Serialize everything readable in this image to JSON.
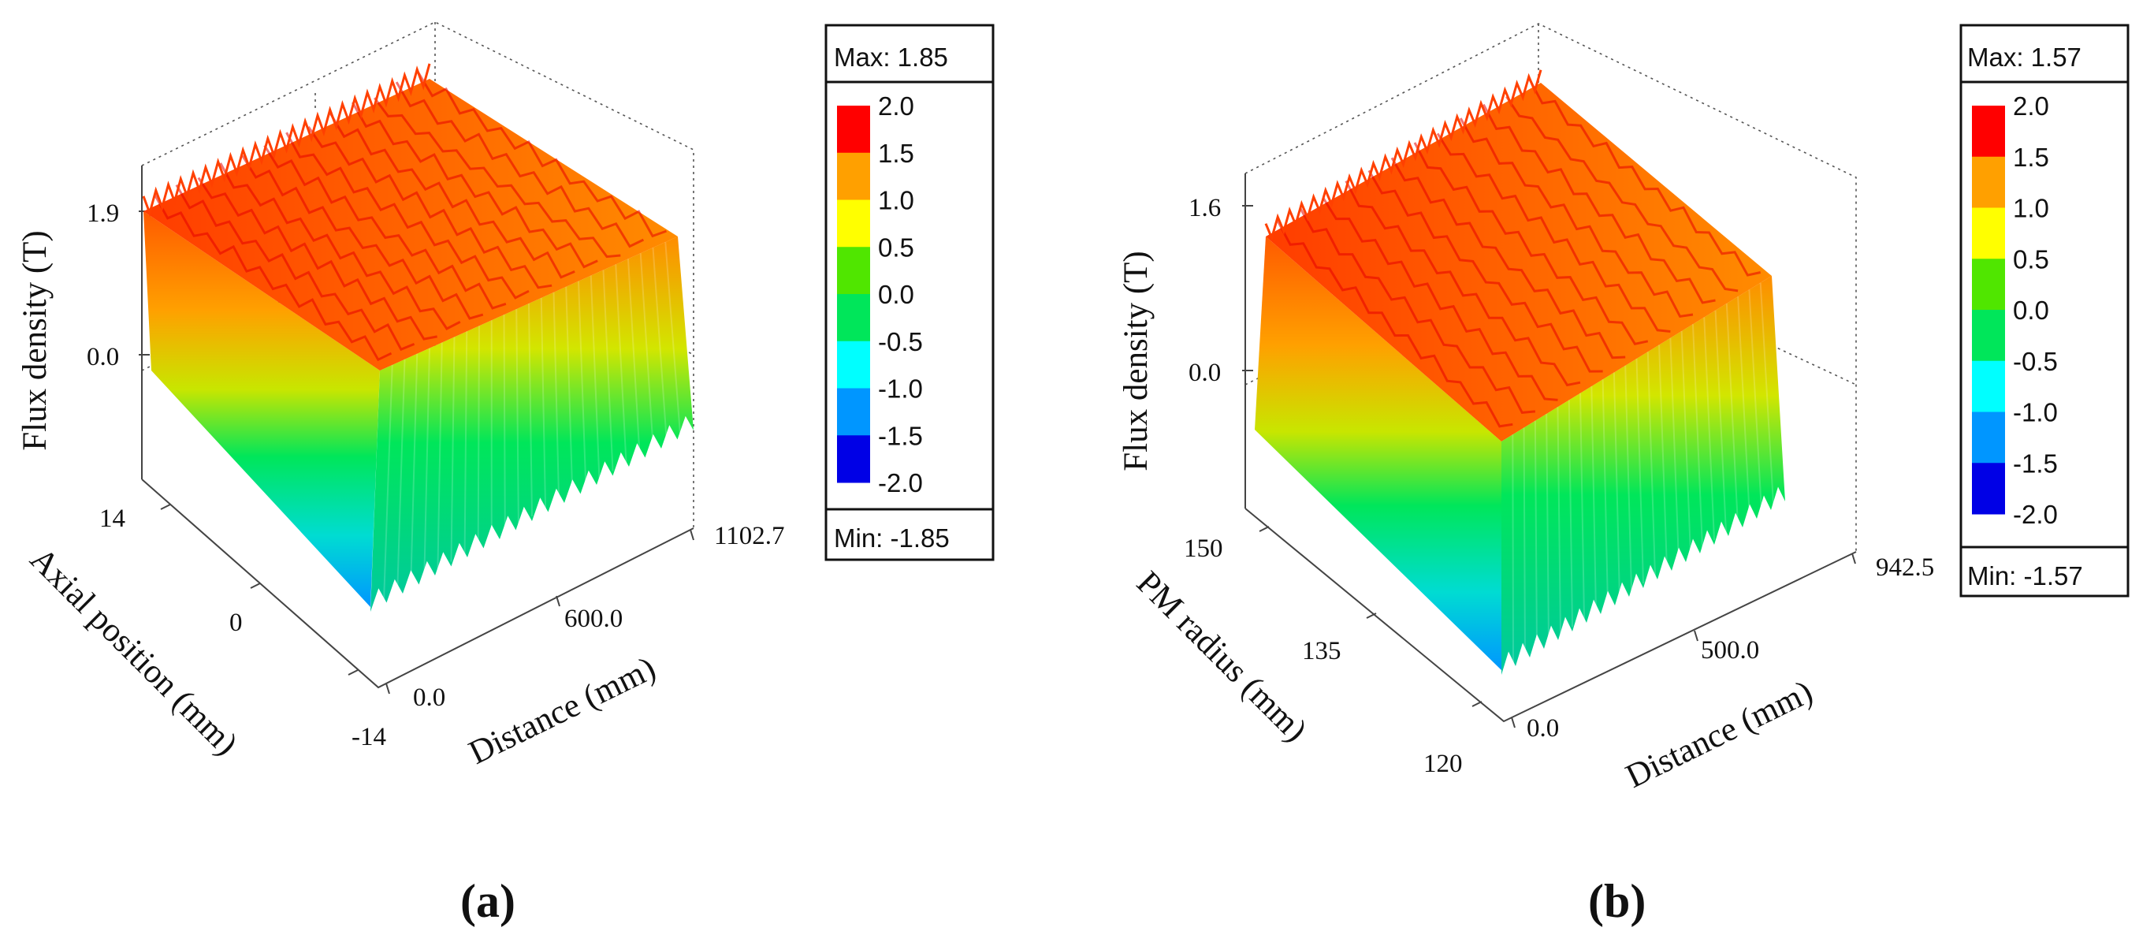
{
  "colors": {
    "scale": [
      "#0000e6",
      "#0096ff",
      "#00ffff",
      "#00e65a",
      "#50e600",
      "#ffff00",
      "#ffa000",
      "#ff0000"
    ],
    "axis": "#444444"
  },
  "chart_data": [
    {
      "type": "surface3d",
      "panel_label": "(a)",
      "zlabel": "Flux density (T)",
      "z_ticks": [
        "1.9",
        "0.0"
      ],
      "ylabel": "Axial position (mm)",
      "y_ticks": [
        "14",
        "0",
        "-14"
      ],
      "xlabel": "Distance (mm)",
      "x_ticks": [
        "0.0",
        "600.0",
        "1102.7"
      ],
      "legend": {
        "max_label": "Max: 1.85",
        "min_label": "Min: -1.85",
        "levels": [
          "2.0",
          "1.5",
          "1.0",
          "0.5",
          "0.0",
          "-0.5",
          "-1.0",
          "-1.5",
          "-2.0"
        ]
      },
      "max": 1.85,
      "min": -1.85,
      "x_range": [
        0.0,
        1102.7
      ],
      "y_range": [
        -14,
        14
      ],
      "ridges": 13
    },
    {
      "type": "surface3d",
      "panel_label": "(b)",
      "zlabel": "Flux density (T)",
      "z_ticks": [
        "1.6",
        "0.0"
      ],
      "ylabel": "PM radius (mm)",
      "y_ticks": [
        "150",
        "135",
        "120"
      ],
      "xlabel": "Distance (mm)",
      "x_ticks": [
        "0.0",
        "500.0",
        "942.5"
      ],
      "legend": {
        "max_label": "Max: 1.57",
        "min_label": "Min: -1.57",
        "levels": [
          "2.0",
          "1.5",
          "1.0",
          "0.5",
          "0.0",
          "-0.5",
          "-1.0",
          "-1.5",
          "-2.0"
        ]
      },
      "max": 1.57,
      "min": -1.57,
      "x_range": [
        0.0,
        942.5
      ],
      "y_range": [
        120,
        150
      ],
      "ridges": 12
    }
  ]
}
